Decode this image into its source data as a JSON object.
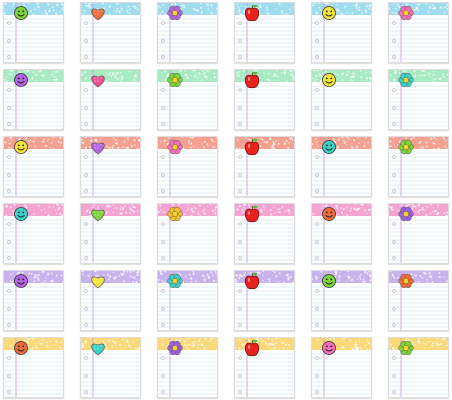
{
  "title": "",
  "colors": {
    "rows": [
      "#9fdcef",
      "#a8eac2",
      "#f7a08f",
      "#f5a3d0",
      "#c9b3ee",
      "#fbd87a"
    ],
    "rule_line": "#b9d9f4",
    "margin_line": "#c49be0",
    "hole": "#b8b8c8"
  },
  "cards": [
    [
      "smiley-icon",
      "heart-icon",
      "flower-icon",
      "apple-icon",
      "smiley-icon",
      "flower-icon"
    ],
    [
      "smiley-icon",
      "heart-icon",
      "flower-icon",
      "apple-icon",
      "smiley-icon",
      "flower-icon"
    ],
    [
      "smiley-icon",
      "heart-icon",
      "flower-icon",
      "apple-icon",
      "smiley-icon",
      "flower-icon"
    ],
    [
      "smiley-icon",
      "heart-icon",
      "flower-icon",
      "apple-icon",
      "smiley-icon",
      "flower-icon"
    ],
    [
      "smiley-icon",
      "heart-icon",
      "flower-icon",
      "apple-icon",
      "smiley-icon",
      "flower-icon"
    ],
    [
      "smiley-icon",
      "heart-icon",
      "flower-icon",
      "apple-icon",
      "smiley-icon",
      "flower-icon"
    ]
  ],
  "icon_colors": [
    [
      "#7cd33a",
      "#f06a3a",
      "#b364e0",
      "#e8231e",
      "#f4e53a",
      "#f56fb8"
    ],
    [
      "#b364e0",
      "#f34f8e",
      "#7cd33a",
      "#e8231e",
      "#f4e53a",
      "#39d0c8"
    ],
    [
      "#f4e53a",
      "#b364e0",
      "#f56fb8",
      "#e8231e",
      "#39d0c8",
      "#7cd33a"
    ],
    [
      "#39d0c8",
      "#7cd33a",
      "#f4c030",
      "#e8231e",
      "#f06a3a",
      "#9b5ee6"
    ],
    [
      "#b364e0",
      "#f4e53a",
      "#39d0c8",
      "#e8231e",
      "#7cd33a",
      "#f06a3a"
    ],
    [
      "#f06a3a",
      "#39d0c8",
      "#9b5ee6",
      "#e8231e",
      "#f56fb8",
      "#7cd33a"
    ]
  ]
}
